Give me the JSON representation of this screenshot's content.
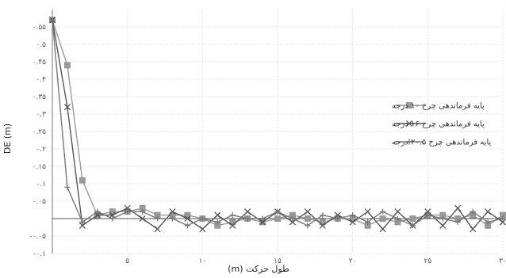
{
  "chart_data": {
    "type": "line",
    "title": "",
    "xlabel": "طول حرکت (m)",
    "ylabel": "DE (m)",
    "xlim": [
      0,
      30
    ],
    "ylim": [
      -0.1,
      0.6
    ],
    "x_ticks": [
      {
        "value": 5,
        "label": "۵"
      },
      {
        "value": 10,
        "label": "۱۰"
      },
      {
        "value": 15,
        "label": "۱۵"
      },
      {
        "value": 20,
        "label": "۲۰"
      },
      {
        "value": 25,
        "label": "۲۵"
      },
      {
        "value": 30,
        "label": "۳۰"
      }
    ],
    "y_ticks": [
      {
        "value": -0.1,
        "label": "-۰.۱"
      },
      {
        "value": -0.05,
        "label": "-۰.۰۵"
      },
      {
        "value": 0.05,
        "label": "۰.۰۵"
      },
      {
        "value": 0.1,
        "label": "۰.۱"
      },
      {
        "value": 0.15,
        "label": "۰.۱۵"
      },
      {
        "value": 0.2,
        "label": "۰.۲"
      },
      {
        "value": 0.25,
        "label": "۰.۲۵"
      },
      {
        "value": 0.3,
        "label": "۰.۳"
      },
      {
        "value": 0.35,
        "label": "۰.۳۵"
      },
      {
        "value": 0.4,
        "label": "۰.۴"
      },
      {
        "value": 0.45,
        "label": "۰.۴۵"
      },
      {
        "value": 0.5,
        "label": "۰.۵"
      },
      {
        "value": 0.55,
        "label": "۰.۵۵"
      }
    ],
    "grid": true,
    "legend_position": "right",
    "series": [
      {
        "name": "پایه فرماندهی چرخ ۱۰ درجه",
        "color": "#9a9a9a",
        "marker": "square",
        "x": [
          0,
          1,
          2,
          3,
          4,
          5,
          6,
          7,
          8,
          9,
          10,
          11,
          12,
          13,
          14,
          15,
          16,
          17,
          18,
          19,
          20,
          21,
          22,
          23,
          24,
          25,
          26,
          27,
          28,
          29,
          30
        ],
        "y": [
          0.57,
          0.44,
          0.11,
          0.01,
          0.02,
          0.02,
          0.03,
          0.01,
          0.01,
          0.01,
          0.0,
          -0.02,
          -0.01,
          0.0,
          -0.01,
          0.0,
          0.01,
          0.0,
          -0.01,
          0.0,
          0.0,
          -0.02,
          0.0,
          -0.01,
          0.0,
          0.01,
          0.01,
          0.0,
          0.01,
          -0.02,
          0.01
        ]
      },
      {
        "name": "پایه فرماندهی چرخ ۱۶ درجه",
        "color": "#555555",
        "marker": "x",
        "x": [
          0,
          1,
          2,
          3,
          4,
          5,
          6,
          7,
          8,
          9,
          10,
          11,
          12,
          13,
          14,
          15,
          16,
          17,
          18,
          19,
          20,
          21,
          22,
          23,
          24,
          25,
          26,
          27,
          28,
          29,
          30
        ],
        "y": [
          0.57,
          0.32,
          -0.02,
          0.01,
          0.01,
          0.03,
          0.0,
          -0.03,
          0.02,
          0.0,
          -0.03,
          0.01,
          -0.02,
          0.02,
          -0.01,
          0.02,
          -0.01,
          0.02,
          -0.02,
          0.01,
          -0.01,
          0.02,
          -0.03,
          0.02,
          -0.02,
          0.02,
          -0.02,
          0.03,
          -0.03,
          0.02,
          -0.01
        ]
      },
      {
        "name": "پایه فرماندهی چرخ ۲۰.۵ درجه",
        "color": "#777777",
        "marker": "plus",
        "x": [
          0,
          1,
          2,
          3,
          4,
          5,
          6,
          7,
          8,
          9,
          10,
          11,
          12,
          13,
          14,
          15,
          16,
          17,
          18,
          19,
          20,
          21,
          22,
          23,
          24,
          25,
          26,
          27,
          28,
          29,
          30
        ],
        "y": [
          0.57,
          0.09,
          -0.01,
          0.02,
          0.0,
          0.02,
          0.02,
          0.0,
          0.0,
          -0.02,
          0.0,
          -0.01,
          0.01,
          0.0,
          0.0,
          0.02,
          0.0,
          -0.02,
          0.01,
          0.0,
          0.01,
          -0.01,
          0.02,
          0.0,
          -0.02,
          0.01,
          0.0,
          -0.01,
          0.02,
          -0.01,
          0.0
        ]
      }
    ]
  }
}
